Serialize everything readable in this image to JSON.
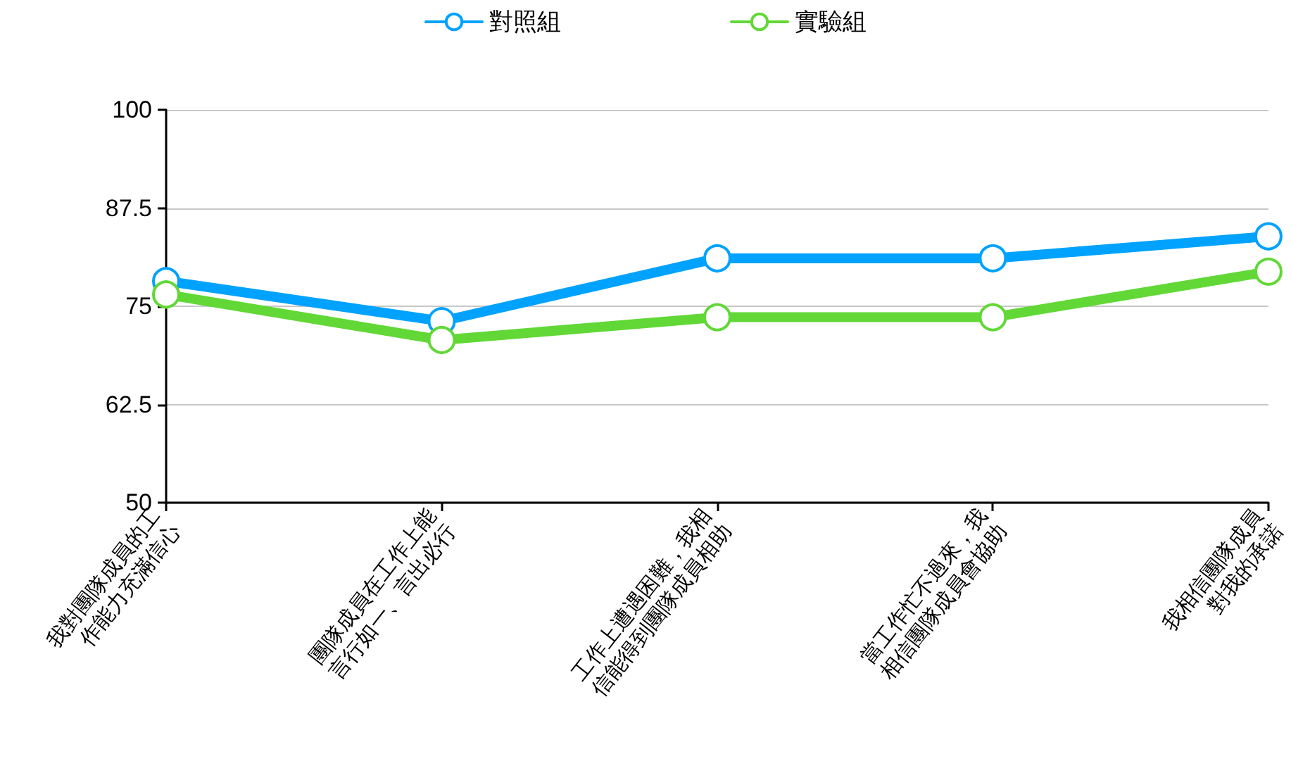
{
  "chart_data": {
    "type": "line",
    "categories": [
      "我對團隊成員的工\n作能力充滿信心",
      "團隊成員在工作上能\n言行如一、言出必行",
      "工作上遭遇困難，我相\n信能得到團隊成員相助",
      "當工作忙不過來，我\n相信團隊成員會協助",
      "我相信團隊成員\n對我的承諾"
    ],
    "series": [
      {
        "name": "對照組",
        "color": "#00a2ff",
        "values": [
          78.2,
          73.1,
          81.1,
          81.1,
          83.9
        ]
      },
      {
        "name": "實驗組",
        "color": "#61d836",
        "values": [
          76.5,
          70.7,
          73.6,
          73.6,
          79.4
        ]
      }
    ],
    "ylim": [
      50,
      100
    ],
    "yticks": [
      50,
      62.5,
      75,
      87.5,
      100
    ],
    "grid": "y",
    "legend": "top",
    "marker": "circle",
    "line_style": "solid"
  }
}
